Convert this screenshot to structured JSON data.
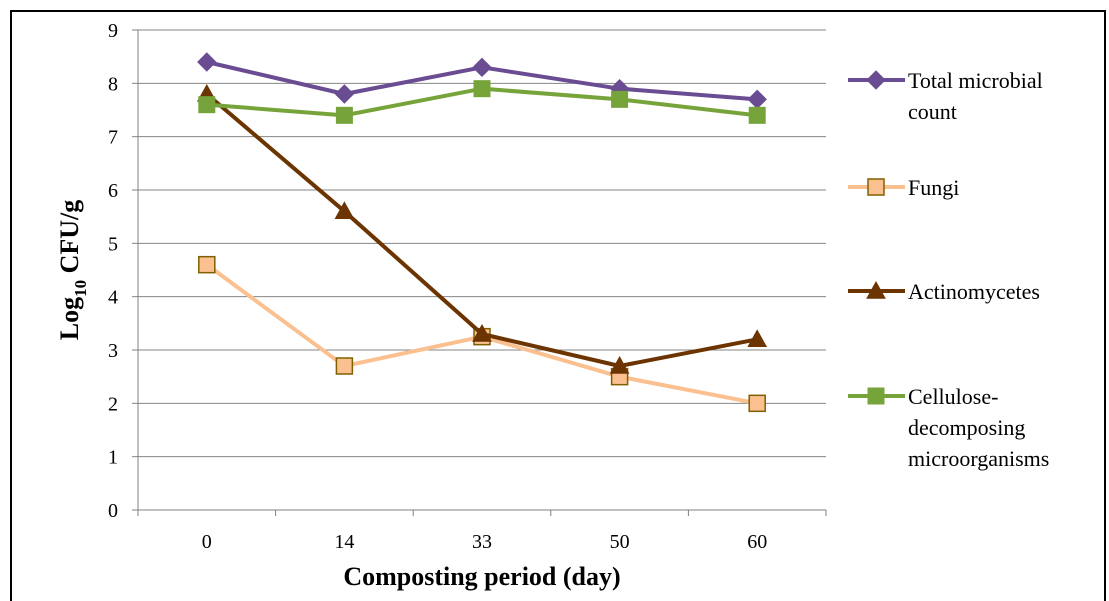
{
  "chart_data": {
    "type": "line",
    "categories": [
      "0",
      "14",
      "33",
      "50",
      "60"
    ],
    "ylim": [
      0,
      9
    ],
    "yticks": [
      0,
      1,
      2,
      3,
      4,
      5,
      6,
      7,
      8,
      9
    ],
    "grid": "horizontal",
    "legend_position": "right",
    "ylabel": "Log10 CFU/g",
    "ylabel_main": "Log",
    "ylabel_sub": "10",
    "ylabel_rest": " CFU/g",
    "xlabel": "Composting period (day)",
    "series": [
      {
        "name": "Total microbial count",
        "legend_lines": [
          "Total microbial",
          "count"
        ],
        "color": "#6a4c93",
        "marker": "diamond",
        "values": [
          8.4,
          7.8,
          8.3,
          7.9,
          7.7
        ]
      },
      {
        "name": "Fungi",
        "legend_lines": [
          "Fungi"
        ],
        "color": "#fac090",
        "marker_edge": "#7f6000",
        "marker": "square-open",
        "values": [
          4.6,
          2.7,
          3.25,
          2.5,
          2.0
        ]
      },
      {
        "name": "Actinomycetes",
        "legend_lines": [
          "Actinomycetes"
        ],
        "color": "#6b3400",
        "marker": "triangle",
        "values": [
          7.8,
          5.6,
          3.3,
          2.7,
          3.2
        ]
      },
      {
        "name": "Cellulose-decomposing microorganisms",
        "legend_lines": [
          "Cellulose-",
          "decomposing",
          "microorganisms"
        ],
        "color": "#77a33b",
        "marker": "square",
        "values": [
          7.6,
          7.4,
          7.9,
          7.7,
          7.4
        ]
      }
    ]
  }
}
